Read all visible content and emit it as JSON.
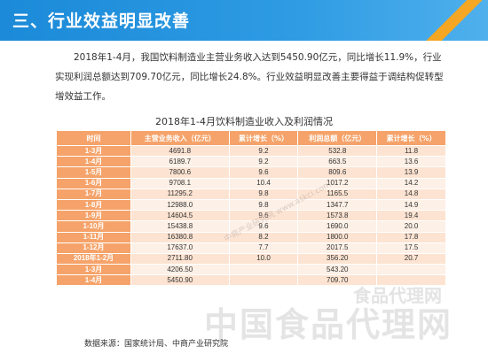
{
  "header": {
    "title": "三、行业效益明显改善"
  },
  "intro": {
    "paragraph": "2018年1-4月，我国饮料制造业主营业务收入达到5450.90亿元，同比增长11.9%，行业实现利润总额达到709.70亿元，同比增长24.8%。行业效益明显改善主要得益于调结构促转型增效益工作。"
  },
  "table": {
    "title": "2018年1-4月饮料制造业收入及利润情况",
    "headers": [
      "时间",
      "主营业务收入（亿元）",
      "累计增长（%）",
      "利润总额（亿元）",
      "累计增长（%）"
    ],
    "rows": [
      [
        "1-3月",
        "4691.8",
        "9.2",
        "532.8",
        "11.8"
      ],
      [
        "1-4月",
        "6189.7",
        "9.2",
        "663.5",
        "13.6"
      ],
      [
        "1-5月",
        "7800.6",
        "9.6",
        "809.6",
        "13.9"
      ],
      [
        "1-6月",
        "9708.1",
        "10.4",
        "1017.2",
        "14.2"
      ],
      [
        "1-7月",
        "11295.2",
        "9.8",
        "1165.5",
        "14.8"
      ],
      [
        "1-8月",
        "12988.0",
        "9.8",
        "1347.7",
        "14.9"
      ],
      [
        "1-9月",
        "14604.5",
        "9.6",
        "1573.8",
        "19.4"
      ],
      [
        "1-10月",
        "15438.8",
        "9.6",
        "1690.0",
        "20.0"
      ],
      [
        "1-11月",
        "16380.8",
        "8.2",
        "1800.0",
        "17.8"
      ],
      [
        "1-12月",
        "17637.0",
        "7.7",
        "2017.5",
        "17.5"
      ],
      [
        "2018年1-2月",
        "2711.80",
        "10.0",
        "356.20",
        "20.7"
      ],
      [
        "1-3月",
        "4206.50",
        "",
        "543.20",
        ""
      ],
      [
        "1-4月",
        "5450.90",
        "",
        "709.70",
        ""
      ]
    ]
  },
  "source": "数据来源：国家统计局、中商产业研究院",
  "watermarks": {
    "center": "中商产业研究院 www.askci.com",
    "bottom": "中国食品代理网",
    "logo": "食品代理网"
  }
}
